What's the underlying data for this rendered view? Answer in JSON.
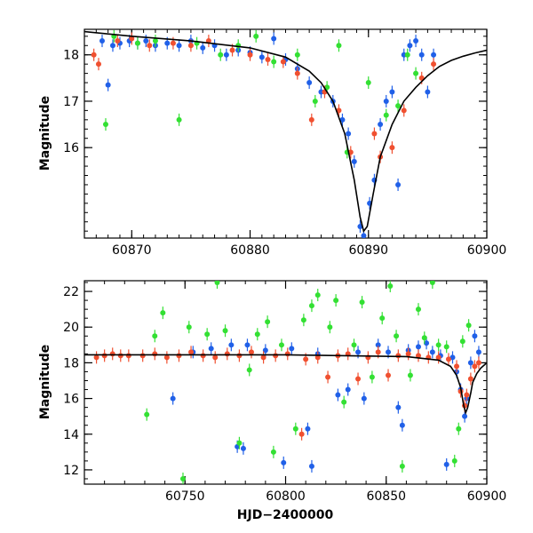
{
  "chart_data": [
    {
      "type": "scatter",
      "panel": "top",
      "xlabel": "",
      "ylabel": "Magnitude",
      "xlim": [
        60866,
        60900
      ],
      "ylim": [
        18.55,
        14.05
      ],
      "y_inverted": true,
      "grid": false,
      "x_ticks": [
        "60870",
        "60880",
        "60890",
        "60900"
      ],
      "y_ticks": [
        "16",
        "17",
        "18"
      ],
      "series": [
        {
          "color": "#2060e8",
          "points": [
            [
              60867.5,
              18.3
            ],
            [
              60868.0,
              17.35
            ],
            [
              60868.4,
              18.2
            ],
            [
              60869.0,
              18.25
            ],
            [
              60869.8,
              18.3
            ],
            [
              60870.5,
              18.25
            ],
            [
              60871.2,
              18.3
            ],
            [
              60872.0,
              18.2
            ],
            [
              60873.0,
              18.25
            ],
            [
              60874.0,
              18.2
            ],
            [
              60875.0,
              18.3
            ],
            [
              60876.0,
              18.15
            ],
            [
              60877.0,
              18.2
            ],
            [
              60878.0,
              18.0
            ],
            [
              60879.0,
              18.1
            ],
            [
              60880.0,
              18.05
            ],
            [
              60881.0,
              17.95
            ],
            [
              60882.0,
              18.35
            ],
            [
              60883.0,
              17.9
            ],
            [
              60884.0,
              17.7
            ],
            [
              60885.0,
              17.4
            ],
            [
              60886.0,
              17.2
            ],
            [
              60887.0,
              17.0
            ],
            [
              60887.8,
              16.6
            ],
            [
              60888.3,
              16.3
            ],
            [
              60888.8,
              15.7
            ],
            [
              60889.3,
              14.3
            ],
            [
              60889.6,
              14.1
            ],
            [
              60890.1,
              14.8
            ],
            [
              60890.5,
              15.3
            ],
            [
              60891.0,
              16.5
            ],
            [
              60891.5,
              17.0
            ],
            [
              60892.0,
              17.2
            ],
            [
              60892.5,
              15.2
            ],
            [
              60893.0,
              18.0
            ],
            [
              60893.5,
              18.2
            ],
            [
              60894.0,
              18.3
            ],
            [
              60894.5,
              18.0
            ],
            [
              60895.0,
              17.2
            ],
            [
              60895.5,
              18.0
            ]
          ]
        },
        {
          "color": "#33e033",
          "points": [
            [
              60867.8,
              16.5
            ],
            [
              60868.5,
              18.4
            ],
            [
              60870.5,
              18.25
            ],
            [
              60872.0,
              18.3
            ],
            [
              60874.0,
              16.6
            ],
            [
              60875.5,
              18.25
            ],
            [
              60877.5,
              18.0
            ],
            [
              60879.0,
              18.2
            ],
            [
              60880.5,
              18.4
            ],
            [
              60882.0,
              17.85
            ],
            [
              60884.0,
              18.0
            ],
            [
              60885.5,
              17.0
            ],
            [
              60886.5,
              17.3
            ],
            [
              60887.5,
              18.2
            ],
            [
              60888.2,
              15.9
            ],
            [
              60890.0,
              17.4
            ],
            [
              60891.5,
              16.7
            ],
            [
              60892.5,
              16.9
            ],
            [
              60893.3,
              18.0
            ],
            [
              60894.0,
              17.6
            ]
          ]
        },
        {
          "color": "#f05030",
          "points": [
            [
              60866.8,
              18.0
            ],
            [
              60867.2,
              17.8
            ],
            [
              60868.8,
              18.3
            ],
            [
              60870.0,
              18.35
            ],
            [
              60871.5,
              18.2
            ],
            [
              60873.5,
              18.25
            ],
            [
              60875.0,
              18.2
            ],
            [
              60876.5,
              18.3
            ],
            [
              60878.5,
              18.1
            ],
            [
              60880.0,
              18.0
            ],
            [
              60881.5,
              17.9
            ],
            [
              60882.8,
              17.85
            ],
            [
              60884.0,
              17.6
            ],
            [
              60885.2,
              16.6
            ],
            [
              60886.3,
              17.2
            ],
            [
              60887.5,
              16.8
            ],
            [
              60888.5,
              15.9
            ],
            [
              60890.5,
              16.3
            ],
            [
              60891.0,
              15.8
            ],
            [
              60892.0,
              16.0
            ],
            [
              60893.0,
              16.8
            ],
            [
              60894.5,
              17.5
            ],
            [
              60895.5,
              17.8
            ]
          ]
        },
        {
          "color": "#000000",
          "style": "line",
          "points": [
            [
              60866,
              18.5
            ],
            [
              60870,
              18.4
            ],
            [
              60875,
              18.3
            ],
            [
              60880,
              18.15
            ],
            [
              60883,
              17.95
            ],
            [
              60885,
              17.65
            ],
            [
              60886,
              17.4
            ],
            [
              60887,
              17.0
            ],
            [
              60888,
              16.3
            ],
            [
              60888.8,
              15.3
            ],
            [
              60889.3,
              14.5
            ],
            [
              60889.6,
              14.2
            ],
            [
              60889.9,
              14.3
            ],
            [
              60890.4,
              15.0
            ],
            [
              60891,
              15.8
            ],
            [
              60892,
              16.5
            ],
            [
              60893,
              17.0
            ],
            [
              60894,
              17.3
            ],
            [
              60895,
              17.55
            ],
            [
              60896,
              17.75
            ],
            [
              60897,
              17.88
            ],
            [
              60898,
              17.97
            ],
            [
              60899,
              18.04
            ],
            [
              60900,
              18.1
            ]
          ]
        }
      ]
    },
    {
      "type": "scatter",
      "panel": "bottom",
      "xlabel": "HJD−2400000",
      "ylabel": "Magnitude",
      "xlim": [
        60700,
        60900
      ],
      "ylim": [
        22.6,
        11.2
      ],
      "y_inverted": true,
      "grid": false,
      "x_ticks": [
        "60750",
        "60800",
        "60850",
        "60900"
      ],
      "y_ticks": [
        "12",
        "14",
        "16",
        "18",
        "20",
        "22"
      ],
      "series": [
        {
          "color": "#2060e8",
          "points": [
            [
              60744,
              16.0
            ],
            [
              60754,
              18.6
            ],
            [
              60763,
              18.8
            ],
            [
              60773,
              19.0
            ],
            [
              60776,
              13.3
            ],
            [
              60779,
              13.2
            ],
            [
              60781,
              19.0
            ],
            [
              60790,
              18.7
            ],
            [
              60799,
              12.4
            ],
            [
              60803,
              18.8
            ],
            [
              60811,
              14.3
            ],
            [
              60813,
              12.2
            ],
            [
              60816,
              18.5
            ],
            [
              60826,
              16.2
            ],
            [
              60831,
              16.5
            ],
            [
              60836,
              18.6
            ],
            [
              60839,
              16.0
            ],
            [
              60846,
              19.0
            ],
            [
              60851,
              18.6
            ],
            [
              60856,
              15.5
            ],
            [
              60858,
              14.5
            ],
            [
              60861,
              18.7
            ],
            [
              60866,
              18.9
            ],
            [
              60870,
              19.1
            ],
            [
              60873,
              18.6
            ],
            [
              60877,
              18.4
            ],
            [
              60880,
              12.3
            ],
            [
              60883,
              18.3
            ],
            [
              60885,
              17.5
            ],
            [
              60887,
              16.5
            ],
            [
              60889,
              15.0
            ],
            [
              60890,
              16.0
            ],
            [
              60892,
              18.0
            ],
            [
              60894,
              19.5
            ],
            [
              60896,
              18.6
            ]
          ]
        },
        {
          "color": "#33e033",
          "points": [
            [
              60731,
              15.1
            ],
            [
              60735,
              19.5
            ],
            [
              60739,
              20.8
            ],
            [
              60749,
              11.5
            ],
            [
              60752,
              20.0
            ],
            [
              60761,
              19.6
            ],
            [
              60766,
              22.5
            ],
            [
              60770,
              19.8
            ],
            [
              60777,
              13.5
            ],
            [
              60782,
              17.6
            ],
            [
              60786,
              19.6
            ],
            [
              60791,
              20.3
            ],
            [
              60794,
              13.0
            ],
            [
              60798,
              19.0
            ],
            [
              60805,
              14.3
            ],
            [
              60809,
              20.4
            ],
            [
              60813,
              21.2
            ],
            [
              60816,
              21.8
            ],
            [
              60822,
              20.0
            ],
            [
              60825,
              21.5
            ],
            [
              60829,
              15.8
            ],
            [
              60834,
              19.0
            ],
            [
              60838,
              21.4
            ],
            [
              60843,
              17.2
            ],
            [
              60848,
              20.5
            ],
            [
              60852,
              22.3
            ],
            [
              60855,
              19.5
            ],
            [
              60858,
              12.2
            ],
            [
              60862,
              17.3
            ],
            [
              60866,
              21.0
            ],
            [
              60869,
              19.4
            ],
            [
              60873,
              22.5
            ],
            [
              60876,
              19.0
            ],
            [
              60880,
              18.9
            ],
            [
              60884,
              12.5
            ],
            [
              60886,
              14.3
            ],
            [
              60888,
              19.2
            ],
            [
              60891,
              20.1
            ]
          ]
        },
        {
          "color": "#f05030",
          "points": [
            [
              60706,
              18.3
            ],
            [
              60710,
              18.4
            ],
            [
              60714,
              18.5
            ],
            [
              60718,
              18.4
            ],
            [
              60722,
              18.4
            ],
            [
              60729,
              18.4
            ],
            [
              60735,
              18.5
            ],
            [
              60741,
              18.3
            ],
            [
              60747,
              18.4
            ],
            [
              60753,
              18.6
            ],
            [
              60759,
              18.4
            ],
            [
              60765,
              18.3
            ],
            [
              60771,
              18.5
            ],
            [
              60777,
              18.4
            ],
            [
              60783,
              18.6
            ],
            [
              60789,
              18.3
            ],
            [
              60795,
              18.4
            ],
            [
              60801,
              18.5
            ],
            [
              60808,
              14.0
            ],
            [
              60810,
              18.2
            ],
            [
              60816,
              18.3
            ],
            [
              60821,
              17.2
            ],
            [
              60826,
              18.4
            ],
            [
              60831,
              18.5
            ],
            [
              60836,
              17.1
            ],
            [
              60841,
              18.3
            ],
            [
              60846,
              18.6
            ],
            [
              60851,
              17.3
            ],
            [
              60856,
              18.4
            ],
            [
              60861,
              18.5
            ],
            [
              60866,
              18.4
            ],
            [
              60871,
              18.3
            ],
            [
              60876,
              18.3
            ],
            [
              60881,
              18.2
            ],
            [
              60885,
              17.8
            ],
            [
              60887,
              16.4
            ],
            [
              60889,
              15.6
            ],
            [
              60890,
              16.2
            ],
            [
              60892,
              17.1
            ],
            [
              60894,
              17.8
            ],
            [
              60896,
              18.0
            ]
          ]
        },
        {
          "color": "#000000",
          "style": "line",
          "points": [
            [
              60700,
              18.45
            ],
            [
              60800,
              18.45
            ],
            [
              60860,
              18.35
            ],
            [
              60876,
              18.15
            ],
            [
              60882,
              17.8
            ],
            [
              60885,
              17.3
            ],
            [
              60887,
              16.6
            ],
            [
              60888.5,
              15.6
            ],
            [
              60889.5,
              15.2
            ],
            [
              60890.5,
              15.5
            ],
            [
              60892,
              16.3
            ],
            [
              60893,
              16.9
            ],
            [
              60895,
              17.4
            ],
            [
              60897,
              17.7
            ],
            [
              60900,
              18.0
            ]
          ]
        }
      ]
    }
  ]
}
